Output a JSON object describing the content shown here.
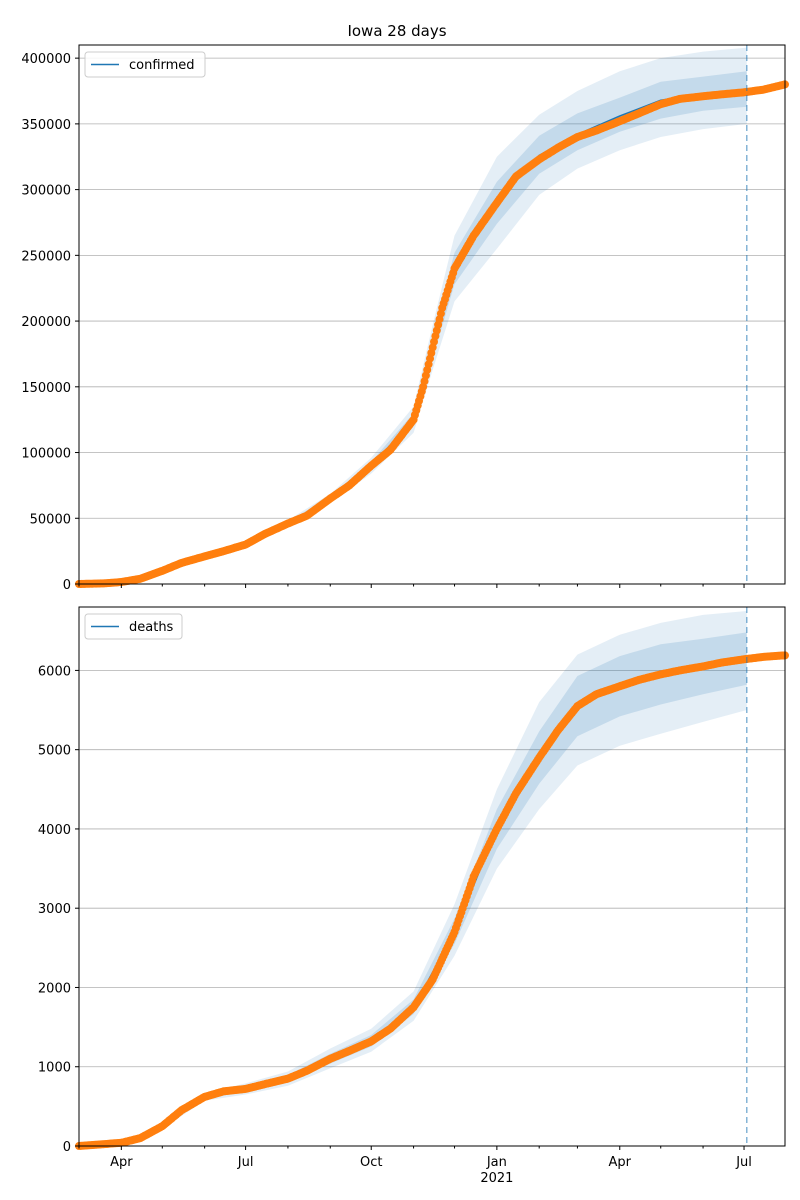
{
  "figure": {
    "title": "Iowa 28 days"
  },
  "colors": {
    "model_line": "#1f77b4",
    "band": "#1f77b4",
    "observed": "#ff7f0e",
    "forecast_marker": "#1f77b4",
    "grid": "#b0b0b0"
  },
  "chart_data": [
    {
      "type": "line",
      "name": "confirmed",
      "x_type": "date",
      "xlim": [
        "2020-03-01",
        "2021-07-31"
      ],
      "ylim": [
        0,
        410000
      ],
      "yticks": [
        0,
        50000,
        100000,
        150000,
        200000,
        250000,
        300000,
        350000,
        400000
      ],
      "ytick_labels": [
        "0",
        "50000",
        "100000",
        "150000",
        "200000",
        "250000",
        "300000",
        "350000",
        "400000"
      ],
      "grid": "horizontal",
      "legend": {
        "position": "top-left",
        "entries": [
          "confirmed"
        ]
      },
      "forecast_start": "2021-07-03",
      "observed": {
        "x": [
          "2020-03-01",
          "2020-03-20",
          "2020-04-01",
          "2020-04-15",
          "2020-05-01",
          "2020-05-15",
          "2020-06-01",
          "2020-06-15",
          "2020-07-01",
          "2020-07-15",
          "2020-08-01",
          "2020-08-15",
          "2020-09-01",
          "2020-09-15",
          "2020-10-01",
          "2020-10-15",
          "2020-11-01",
          "2020-11-08",
          "2020-11-15",
          "2020-11-22",
          "2020-12-01",
          "2020-12-15",
          "2021-01-01",
          "2021-01-15",
          "2021-02-01",
          "2021-02-15",
          "2021-03-01",
          "2021-03-15",
          "2021-04-01",
          "2021-04-15",
          "2021-05-01",
          "2021-05-15",
          "2021-06-01",
          "2021-06-15",
          "2021-07-01",
          "2021-07-15",
          "2021-07-31"
        ],
        "y": [
          0,
          500,
          1500,
          4000,
          10000,
          16000,
          21000,
          25000,
          30000,
          38000,
          46000,
          52000,
          65000,
          75000,
          90000,
          102000,
          125000,
          150000,
          180000,
          210000,
          240000,
          265000,
          290000,
          310000,
          323000,
          332000,
          340000,
          345000,
          352000,
          358000,
          365000,
          369000,
          371000,
          372500,
          374000,
          376000,
          380000
        ]
      },
      "model": {
        "x": [
          "2020-03-01",
          "2020-04-01",
          "2020-05-01",
          "2020-06-01",
          "2020-07-01",
          "2020-08-01",
          "2020-09-01",
          "2020-10-01",
          "2020-11-01",
          "2020-11-15",
          "2020-12-01",
          "2021-01-01",
          "2021-02-01",
          "2021-03-01",
          "2021-04-01",
          "2021-05-01",
          "2021-06-01",
          "2021-07-03"
        ],
        "y": [
          0,
          1500,
          10000,
          21000,
          30000,
          46000,
          65000,
          90000,
          125000,
          180000,
          240000,
          292000,
          326000,
          342000,
          356000,
          368000,
          373000,
          375000
        ],
        "band_outer_low": [
          0,
          1400,
          9500,
          20000,
          28500,
          43500,
          61500,
          84000,
          115000,
          163000,
          215000,
          255000,
          296000,
          316000,
          330000,
          340000,
          346000,
          350000
        ],
        "band_outer_high": [
          0,
          1600,
          10500,
          22000,
          31500,
          48500,
          68500,
          96000,
          135000,
          197000,
          265000,
          325000,
          357000,
          375000,
          390000,
          400000,
          405000,
          408000
        ],
        "band_inner_low": [
          0,
          1450,
          9800,
          20600,
          29300,
          44800,
          63300,
          87000,
          120000,
          171500,
          228000,
          274000,
          312000,
          330000,
          344000,
          354000,
          360000,
          363000
        ],
        "band_inner_high": [
          0,
          1550,
          10200,
          21400,
          30700,
          47200,
          66700,
          93000,
          130000,
          188500,
          252000,
          306000,
          341000,
          358000,
          370000,
          382000,
          386000,
          390000
        ]
      }
    },
    {
      "type": "line",
      "name": "deaths",
      "x_type": "date",
      "xlim": [
        "2020-03-01",
        "2021-07-31"
      ],
      "ylim": [
        0,
        6800
      ],
      "yticks": [
        0,
        1000,
        2000,
        3000,
        4000,
        5000,
        6000
      ],
      "ytick_labels": [
        "0",
        "1000",
        "2000",
        "3000",
        "4000",
        "5000",
        "6000"
      ],
      "xtick_dates": [
        "2020-04-01",
        "2020-07-01",
        "2020-10-01",
        "2021-01-01",
        "2021-04-01",
        "2021-07-01"
      ],
      "xtick_labels": [
        "Apr",
        "Jul",
        "Oct",
        "Jan",
        "Apr",
        "Jul"
      ],
      "xtick_year_label": "2021",
      "grid": "horizontal",
      "legend": {
        "position": "top-left",
        "entries": [
          "deaths"
        ]
      },
      "forecast_start": "2021-07-03",
      "observed": {
        "x": [
          "2020-03-01",
          "2020-04-01",
          "2020-04-15",
          "2020-05-01",
          "2020-05-15",
          "2020-06-01",
          "2020-06-15",
          "2020-07-01",
          "2020-07-15",
          "2020-08-01",
          "2020-08-15",
          "2020-09-01",
          "2020-09-15",
          "2020-10-01",
          "2020-10-15",
          "2020-11-01",
          "2020-11-15",
          "2020-12-01",
          "2020-12-15",
          "2021-01-01",
          "2021-01-15",
          "2021-02-01",
          "2021-02-15",
          "2021-03-01",
          "2021-03-15",
          "2021-04-01",
          "2021-04-15",
          "2021-05-01",
          "2021-05-15",
          "2021-06-01",
          "2021-06-15",
          "2021-07-01",
          "2021-07-15",
          "2021-07-31"
        ],
        "y": [
          0,
          40,
          100,
          250,
          450,
          620,
          690,
          720,
          780,
          850,
          950,
          1100,
          1200,
          1320,
          1480,
          1750,
          2100,
          2700,
          3400,
          4000,
          4450,
          4900,
          5250,
          5550,
          5700,
          5800,
          5880,
          5950,
          6000,
          6050,
          6100,
          6140,
          6170,
          6190
        ]
      },
      "model": {
        "x": [
          "2020-03-01",
          "2020-04-01",
          "2020-05-01",
          "2020-06-01",
          "2020-07-01",
          "2020-08-01",
          "2020-09-01",
          "2020-10-01",
          "2020-11-01",
          "2020-12-01",
          "2021-01-01",
          "2021-02-01",
          "2021-03-01",
          "2021-04-01",
          "2021-05-01",
          "2021-06-01",
          "2021-07-03"
        ],
        "y": [
          0,
          40,
          250,
          620,
          720,
          850,
          1100,
          1320,
          1750,
          2700,
          4000,
          4900,
          5550,
          5800,
          5950,
          6050,
          6150
        ],
        "band_outer_low": [
          0,
          35,
          220,
          570,
          650,
          760,
          980,
          1190,
          1580,
          2400,
          3500,
          4250,
          4800,
          5050,
          5200,
          5350,
          5500
        ],
        "band_outer_high": [
          0,
          45,
          280,
          670,
          790,
          940,
          1230,
          1480,
          1950,
          3050,
          4500,
          5600,
          6200,
          6450,
          6600,
          6700,
          6750
        ],
        "band_inner_low": [
          0,
          38,
          235,
          595,
          685,
          805,
          1040,
          1255,
          1665,
          2550,
          3750,
          4570,
          5170,
          5420,
          5570,
          5700,
          5820
        ],
        "band_inner_high": [
          0,
          42,
          265,
          645,
          755,
          895,
          1165,
          1400,
          1850,
          2870,
          4250,
          5230,
          5930,
          6180,
          6330,
          6400,
          6480
        ]
      }
    }
  ]
}
